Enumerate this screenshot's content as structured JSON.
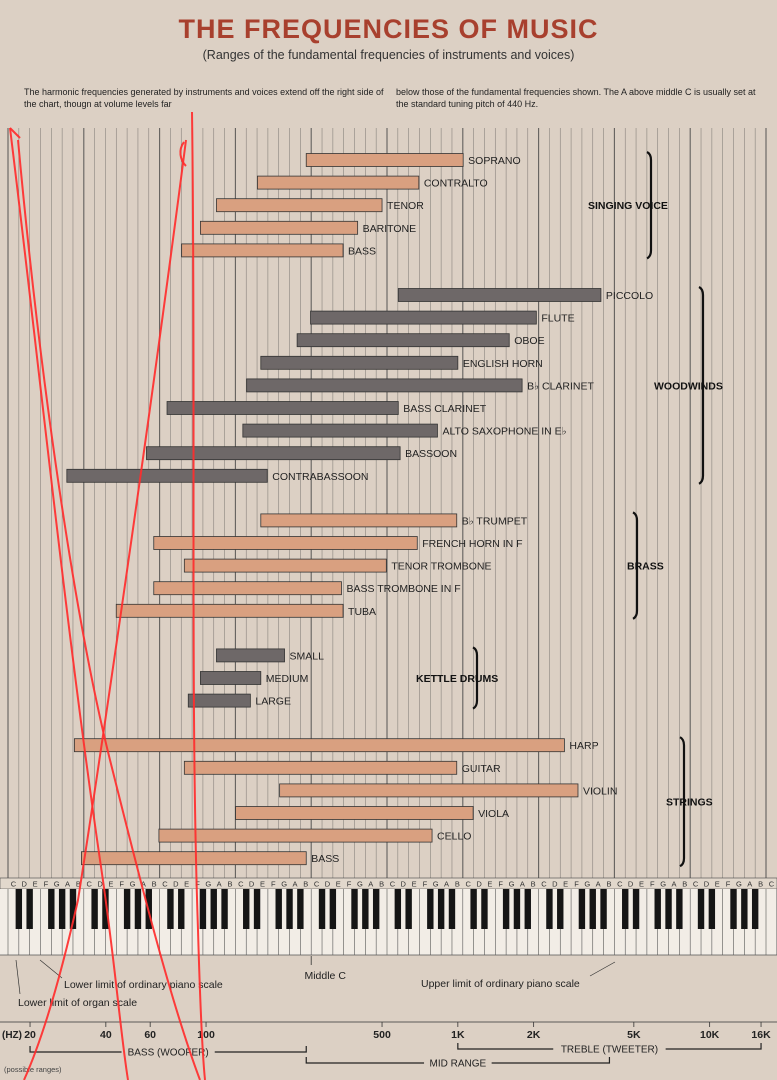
{
  "title": "THE FREQUENCIES OF MUSIC",
  "subtitle": "(Ranges of the fundamental frequencies of instruments and voices)",
  "note_left": "The harmonic frequencies generated by instruments and voices extend off the right side of the chart, thougn at volume levels far",
  "note_right": "below those of the fundamental frequencies shown. The A above middle C is usually set at the standard tuning pitch of 440 Hz.",
  "colors": {
    "voice": "#d9a080",
    "dark": "#6e6868",
    "grid": "#444444",
    "annotation": "#ff2d2d",
    "background": "#dcd0c4"
  },
  "chart_data": {
    "type": "bar",
    "orientation": "horizontal",
    "x_scale": "log",
    "x_unit": "Hz",
    "xlim": [
      15,
      19000
    ],
    "groups": [
      {
        "name": "SINGING VOICE",
        "color": "voice",
        "items": [
          {
            "label": "SOPRANO",
            "low": 250,
            "high": 1050
          },
          {
            "label": "CONTRALTO",
            "low": 160,
            "high": 700
          },
          {
            "label": "TENOR",
            "low": 110,
            "high": 500
          },
          {
            "label": "BARITONE",
            "low": 95,
            "high": 400
          },
          {
            "label": "BASS",
            "low": 80,
            "high": 350
          }
        ]
      },
      {
        "name": "WOODWINDS",
        "color": "dark",
        "items": [
          {
            "label": "PICCOLO",
            "low": 580,
            "high": 3700
          },
          {
            "label": "FLUTE",
            "low": 260,
            "high": 2050
          },
          {
            "label": "OBOE",
            "low": 230,
            "high": 1600
          },
          {
            "label": "ENGLISH HORN",
            "low": 165,
            "high": 1000
          },
          {
            "label": "B♭ CLARINET",
            "low": 145,
            "high": 1800
          },
          {
            "label": "BASS CLARINET",
            "low": 70,
            "high": 580
          },
          {
            "label": "ALTO SAXOPHONE IN E♭",
            "low": 140,
            "high": 830
          },
          {
            "label": "BASSOON",
            "low": 58,
            "high": 590
          },
          {
            "label": "CONTRABASSOON",
            "low": 28,
            "high": 175
          }
        ]
      },
      {
        "name": "BRASS",
        "color": "voice",
        "items": [
          {
            "label": "B♭ TRUMPET",
            "low": 165,
            "high": 990
          },
          {
            "label": "FRENCH HORN IN F",
            "low": 62,
            "high": 690
          },
          {
            "label": "TENOR TROMBONE",
            "low": 82,
            "high": 520
          },
          {
            "label": "BASS TROMBONE IN F",
            "low": 62,
            "high": 345
          },
          {
            "label": "TUBA",
            "low": 44,
            "high": 350
          }
        ]
      },
      {
        "name": "KETTLE DRUMS",
        "color": "dark",
        "items": [
          {
            "label": "SMALL",
            "low": 110,
            "high": 205
          },
          {
            "label": "MEDIUM",
            "low": 95,
            "high": 165
          },
          {
            "label": "LARGE",
            "low": 85,
            "high": 150
          }
        ]
      },
      {
        "name": "STRINGS",
        "color": "voice",
        "items": [
          {
            "label": "HARP",
            "low": 30,
            "high": 2650
          },
          {
            "label": "GUITAR",
            "low": 82,
            "high": 990
          },
          {
            "label": "VIOLIN",
            "low": 196,
            "high": 3000
          },
          {
            "label": "VIOLA",
            "low": 131,
            "high": 1150
          },
          {
            "label": "CELLO",
            "low": 65,
            "high": 790
          },
          {
            "label": "BASS",
            "low": 32,
            "high": 250
          }
        ]
      }
    ],
    "keyboard_octave_letters": "CDEFGAB",
    "keyboard_final_letter": "C",
    "piano_notes": [
      "Middle C",
      "Lower limit of ordinary piano scale",
      "Upper limit of ordinary piano scale",
      "Lower limit of organ scale"
    ],
    "axis_unit_label": "(HZ)",
    "axis_ticks": [
      {
        "label": "20",
        "hz": 20
      },
      {
        "label": "40",
        "hz": 40
      },
      {
        "label": "60",
        "hz": 60
      },
      {
        "label": "100",
        "hz": 100
      },
      {
        "label": "500",
        "hz": 500
      },
      {
        "label": "1K",
        "hz": 1000
      },
      {
        "label": "2K",
        "hz": 2000
      },
      {
        "label": "5K",
        "hz": 5000
      },
      {
        "label": "10K",
        "hz": 10000
      },
      {
        "label": "16K",
        "hz": 16000
      }
    ],
    "bands": [
      {
        "label": "BASS (WOOFER)",
        "low": 20,
        "high": 250
      },
      {
        "label": "MID RANGE",
        "low": 250,
        "high": 4000
      },
      {
        "label": "TREBLE (TWEETER)",
        "low": 1000,
        "high": 16000
      }
    ],
    "footnote": "(possible ranges)"
  }
}
